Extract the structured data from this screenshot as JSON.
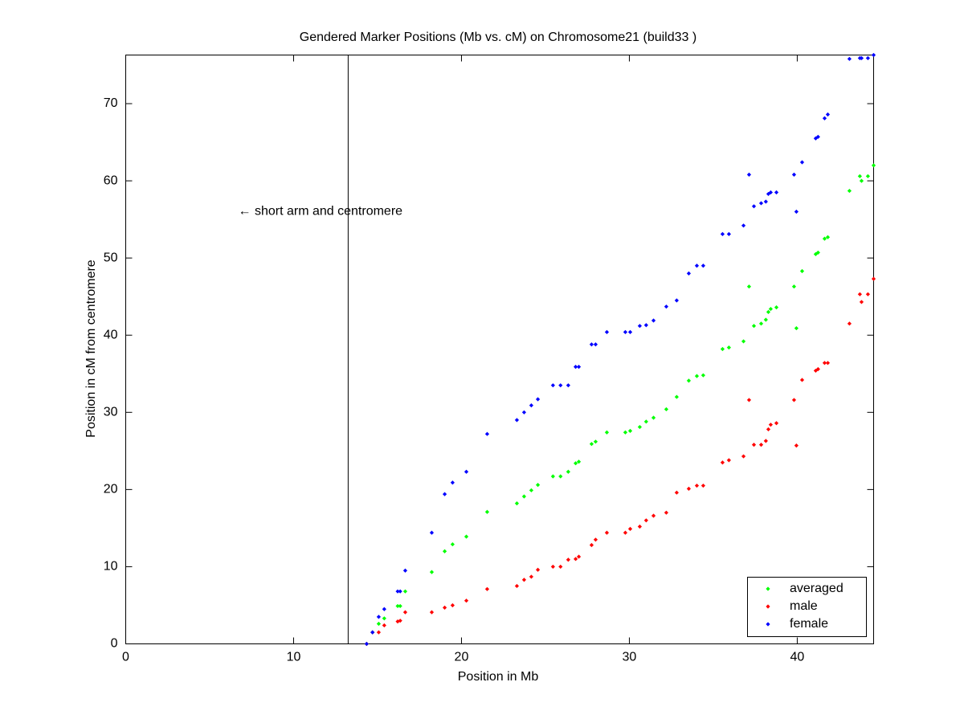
{
  "chart_data": {
    "type": "scatter",
    "title": "Gendered Marker Positions (Mb vs. cM) on Chromosome21 (build33 )",
    "x_label": "Position in Mb",
    "y_label": "Position in cM from centromere",
    "xlim": [
      0,
      44.55
    ],
    "ylim": [
      0,
      76.3
    ],
    "xticks": [
      0,
      10,
      20,
      30,
      40
    ],
    "yticks": [
      0,
      10,
      20,
      30,
      40,
      50,
      60,
      70
    ],
    "vline": 13.25,
    "annotation": {
      "text": "← short arm and centromere",
      "x": 6.7,
      "y": 56
    },
    "legend": "lower right",
    "x": [
      14.35,
      14.7,
      15.07,
      15.4,
      16.2,
      16.35,
      16.65,
      18.23,
      19.0,
      19.47,
      20.29,
      21.53,
      23.3,
      23.73,
      24.16,
      24.55,
      25.45,
      25.9,
      26.36,
      26.8,
      26.99,
      27.75,
      27.99,
      28.66,
      29.76,
      30.05,
      30.62,
      31.0,
      31.44,
      32.2,
      32.82,
      33.54,
      34.02,
      34.4,
      35.55,
      35.93,
      36.8,
      37.13,
      37.42,
      37.85,
      38.13,
      38.28,
      38.42,
      38.76,
      39.81,
      39.95,
      40.29,
      41.1,
      41.24,
      41.63,
      41.82,
      43.11,
      43.73,
      43.83,
      44.21,
      44.55
    ],
    "series": [
      {
        "name": "averaged",
        "color": "#00ff00",
        "values": [
          0,
          1.5,
          2.6,
          3.3,
          4.9,
          4.9,
          6.8,
          9.3,
          12.0,
          12.9,
          13.9,
          17.1,
          18.2,
          19.1,
          19.9,
          20.6,
          21.7,
          21.7,
          22.3,
          23.4,
          23.6,
          25.9,
          26.2,
          27.4,
          27.4,
          27.6,
          28.1,
          28.8,
          29.3,
          30.4,
          32.0,
          34.1,
          34.7,
          34.8,
          38.2,
          38.4,
          39.2,
          46.3,
          41.2,
          41.5,
          42.0,
          43.0,
          43.4,
          43.6,
          46.3,
          40.9,
          48.3,
          50.5,
          50.7,
          52.5,
          52.7,
          58.7,
          60.6,
          60.0,
          60.6,
          62.0
        ]
      },
      {
        "name": "male",
        "color": "#ff0000",
        "values": [
          0,
          1.5,
          1.5,
          2.4,
          2.9,
          3.0,
          4.1,
          4.1,
          4.7,
          5.0,
          5.6,
          7.1,
          7.5,
          8.3,
          8.7,
          9.6,
          10.0,
          10.0,
          10.9,
          11.0,
          11.3,
          12.8,
          13.5,
          14.4,
          14.4,
          14.9,
          15.2,
          16.0,
          16.6,
          17.0,
          19.6,
          20.1,
          20.5,
          20.5,
          23.5,
          23.8,
          24.3,
          31.6,
          25.8,
          25.8,
          26.3,
          27.8,
          28.4,
          28.6,
          31.6,
          25.7,
          34.2,
          35.4,
          35.6,
          36.4,
          36.4,
          41.5,
          45.3,
          44.3,
          45.3,
          47.3
        ]
      },
      {
        "name": "female",
        "color": "#0000ff",
        "values": [
          0,
          1.5,
          3.5,
          4.5,
          6.8,
          6.8,
          9.5,
          14.4,
          19.4,
          20.9,
          22.3,
          27.2,
          29.0,
          30.0,
          30.9,
          31.7,
          33.5,
          33.5,
          33.5,
          35.9,
          35.9,
          38.8,
          38.8,
          40.4,
          40.4,
          40.4,
          41.2,
          41.3,
          41.9,
          43.7,
          44.5,
          48.0,
          49.0,
          49.0,
          53.1,
          53.1,
          54.2,
          60.8,
          56.7,
          57.1,
          57.3,
          58.3,
          58.5,
          58.5,
          60.8,
          56.0,
          62.4,
          65.5,
          65.7,
          68.1,
          68.6,
          75.8,
          75.9,
          75.9,
          75.9,
          76.3
        ]
      }
    ]
  }
}
